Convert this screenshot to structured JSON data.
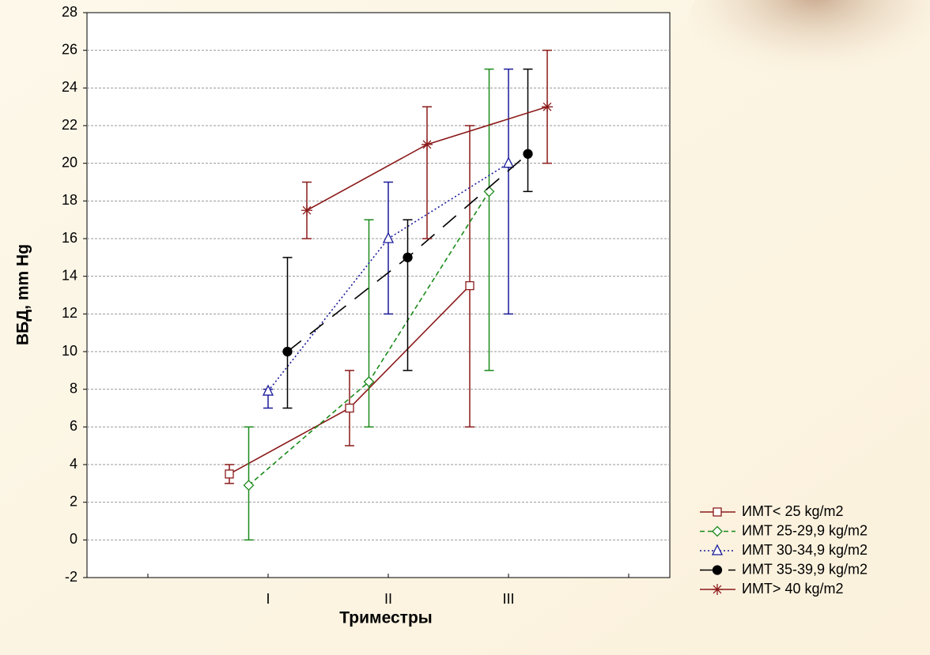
{
  "chart_data": {
    "type": "errorbar-line",
    "ylabel": "ВБД, mm Hg",
    "xlabel": "Триместры",
    "categories": [
      null,
      "I",
      "II",
      "III",
      null
    ],
    "ylim": [
      -2,
      28
    ],
    "yticks": [
      -2,
      0,
      2,
      4,
      6,
      8,
      10,
      12,
      14,
      16,
      18,
      20,
      22,
      24,
      26,
      28
    ],
    "grid": true,
    "legend": "bottom-right",
    "series": [
      {
        "name": "ИМТ< 25 kg/m2",
        "color": "#8b1a1a",
        "dash": "solid",
        "marker": "square",
        "values": [
          null,
          3.5,
          7,
          13.5,
          null
        ],
        "lower": [
          null,
          3,
          5,
          6,
          null
        ],
        "upper": [
          null,
          4,
          9,
          22,
          null
        ]
      },
      {
        "name": "ИМТ 25-29,9 kg/m2",
        "color": "#1a8a1a",
        "dash": "dashed",
        "marker": "diamond",
        "values": [
          null,
          2.9,
          8.4,
          18.5,
          null
        ],
        "lower": [
          null,
          0,
          6,
          9,
          null
        ],
        "upper": [
          null,
          6,
          17,
          25,
          null
        ]
      },
      {
        "name": "ИМТ 30-34,9 kg/m2",
        "color": "#1a1a9a",
        "dash": "dotted",
        "marker": "triangle",
        "values": [
          null,
          7.9,
          16,
          20,
          null
        ],
        "lower": [
          null,
          7,
          12,
          12,
          null
        ],
        "upper": [
          null,
          8,
          19,
          25,
          null
        ]
      },
      {
        "name": "ИМТ 35-39,9 kg/m2",
        "color": "#000000",
        "dash": "longdash",
        "marker": "circle",
        "values": [
          null,
          10,
          15,
          20.5,
          null
        ],
        "lower": [
          null,
          7,
          9,
          18.5,
          null
        ],
        "upper": [
          null,
          15,
          17,
          25,
          null
        ]
      },
      {
        "name": "ИМТ> 40 kg/m2",
        "color": "#8b1a1a",
        "dash": "solid",
        "marker": "star",
        "values": [
          null,
          17.5,
          21,
          23,
          null
        ],
        "lower": [
          null,
          16,
          16,
          20,
          null
        ],
        "upper": [
          null,
          19,
          23,
          26,
          null
        ]
      }
    ]
  }
}
